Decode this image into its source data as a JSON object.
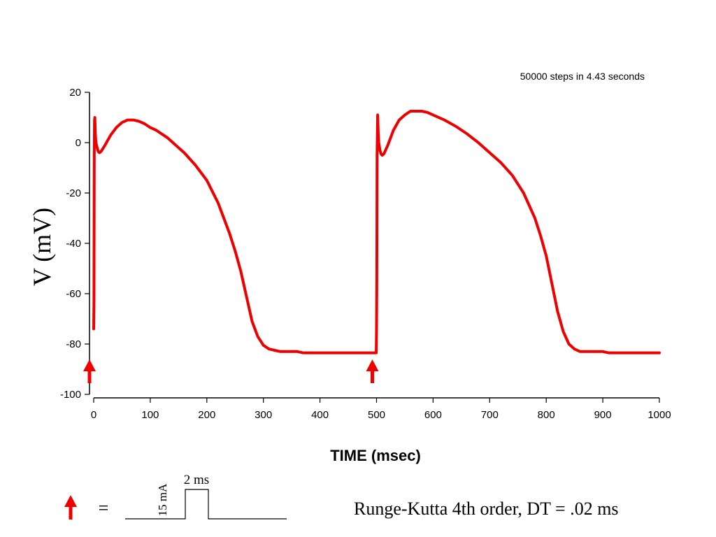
{
  "annotation_top": "50000 steps in 4.43 seconds",
  "legend": {
    "equals": "=",
    "pulse_amplitude": "15 mA",
    "pulse_width": "2 ms",
    "method": "Runge-Kutta 4th order, DT = .02  ms"
  },
  "colors": {
    "trace": "#ee0000",
    "stimulus": "#ee0000",
    "axis": "#000000"
  },
  "chart_data": {
    "type": "line",
    "xlabel": "TIME (msec)",
    "ylabel": "V (mV)",
    "xlim": [
      0,
      1000
    ],
    "ylim": [
      -100,
      20
    ],
    "x_ticks": [
      0,
      100,
      200,
      300,
      400,
      500,
      600,
      700,
      800,
      900,
      1000
    ],
    "y_ticks": [
      20,
      0,
      -20,
      -40,
      -60,
      -80,
      -100
    ],
    "grid": false,
    "stimuli_ms": [
      0,
      500
    ],
    "series": [
      {
        "x": [
          0,
          0.5,
          1,
          1.5,
          2,
          3,
          4,
          6,
          8,
          10,
          13,
          16,
          20,
          25,
          30,
          40,
          50,
          60,
          70,
          80,
          90,
          100,
          110,
          120,
          130,
          140,
          150,
          160,
          170,
          180,
          190,
          200,
          210,
          220,
          230,
          240,
          250,
          260,
          270,
          280,
          290,
          300,
          310,
          320,
          330,
          340,
          350,
          360,
          370,
          400,
          450,
          490,
          495,
          499.5,
          500,
          500.5,
          501,
          502,
          503,
          504,
          506,
          508,
          510,
          513,
          516,
          520,
          525,
          530,
          540,
          550,
          560,
          570,
          580,
          590,
          600,
          620,
          640,
          660,
          680,
          700,
          720,
          740,
          760,
          780,
          790,
          800,
          810,
          820,
          830,
          840,
          850,
          860,
          870,
          900,
          910,
          950,
          1000
        ],
        "y": [
          -74,
          -63,
          -5,
          9,
          10,
          3,
          0,
          -2,
          -3.5,
          -4,
          -3.5,
          -2.5,
          -1,
          1,
          3,
          6,
          8,
          9,
          9,
          8.5,
          7.5,
          6,
          5,
          3.5,
          2,
          0,
          -2,
          -4,
          -6.5,
          -9,
          -12,
          -15,
          -19.5,
          -24,
          -30,
          -36,
          -43,
          -51,
          -61,
          -71,
          -77,
          -80.5,
          -82,
          -82.5,
          -83,
          -83,
          -83,
          -83,
          -83.5,
          -83.5,
          -83.5,
          -83.5,
          -83.5,
          -83.5,
          -74,
          -54,
          -5,
          11,
          4,
          0,
          -3,
          -4.5,
          -5,
          -4.5,
          -3,
          -1,
          2,
          5,
          9,
          11,
          12.5,
          12.5,
          12.5,
          12,
          11,
          9,
          6.5,
          3.5,
          0,
          -4,
          -8,
          -13,
          -20,
          -30,
          -37,
          -45,
          -56,
          -67,
          -75,
          -80,
          -82,
          -83,
          -83,
          -83,
          -83.5,
          -83.5,
          -83.5
        ]
      }
    ]
  }
}
